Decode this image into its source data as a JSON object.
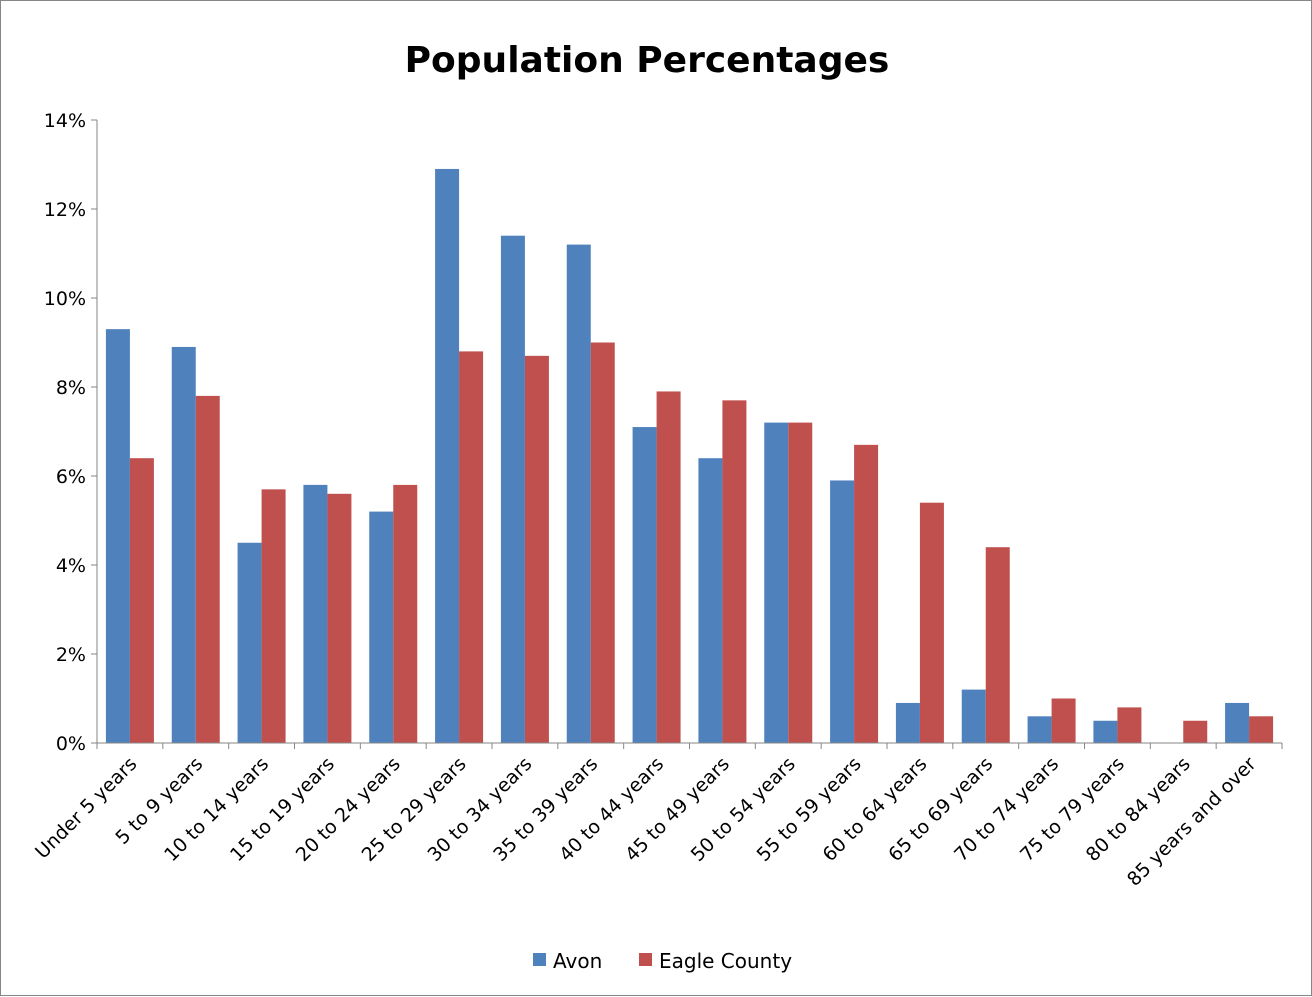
{
  "chart_data": {
    "type": "bar",
    "title": "Population Percentages",
    "xlabel": "",
    "ylabel": "",
    "ylim": [
      0,
      14
    ],
    "yticks": [
      "0%",
      "2%",
      "4%",
      "6%",
      "8%",
      "10%",
      "12%",
      "14%"
    ],
    "ytick_values": [
      0,
      2,
      4,
      6,
      8,
      10,
      12,
      14
    ],
    "grid": false,
    "legend_position": "bottom",
    "categories": [
      "Under 5 years",
      "5 to 9 years",
      "10 to 14 years",
      "15 to 19 years",
      "20 to 24 years",
      "25 to 29 years",
      "30 to 34 years",
      "35 to 39 years",
      "40 to 44 years",
      "45 to 49 years",
      "50 to 54 years",
      "55 to 59 years",
      "60 to 64 years",
      "65 to 69 years",
      "70 to 74 years",
      "75 to 79 years",
      "80 to 84 years",
      "85 years and over"
    ],
    "series": [
      {
        "name": "Avon",
        "color": "#4F81BD",
        "values": [
          9.3,
          8.9,
          4.5,
          5.8,
          5.2,
          12.9,
          11.4,
          11.2,
          7.1,
          6.4,
          7.2,
          5.9,
          0.9,
          1.2,
          0.6,
          0.5,
          0.0,
          0.9
        ]
      },
      {
        "name": "Eagle County",
        "color": "#C0504D",
        "values": [
          6.4,
          7.8,
          5.7,
          5.6,
          5.8,
          8.8,
          8.7,
          9.0,
          7.9,
          7.7,
          7.2,
          6.7,
          5.4,
          4.4,
          1.0,
          0.8,
          0.5,
          0.6
        ]
      }
    ]
  }
}
